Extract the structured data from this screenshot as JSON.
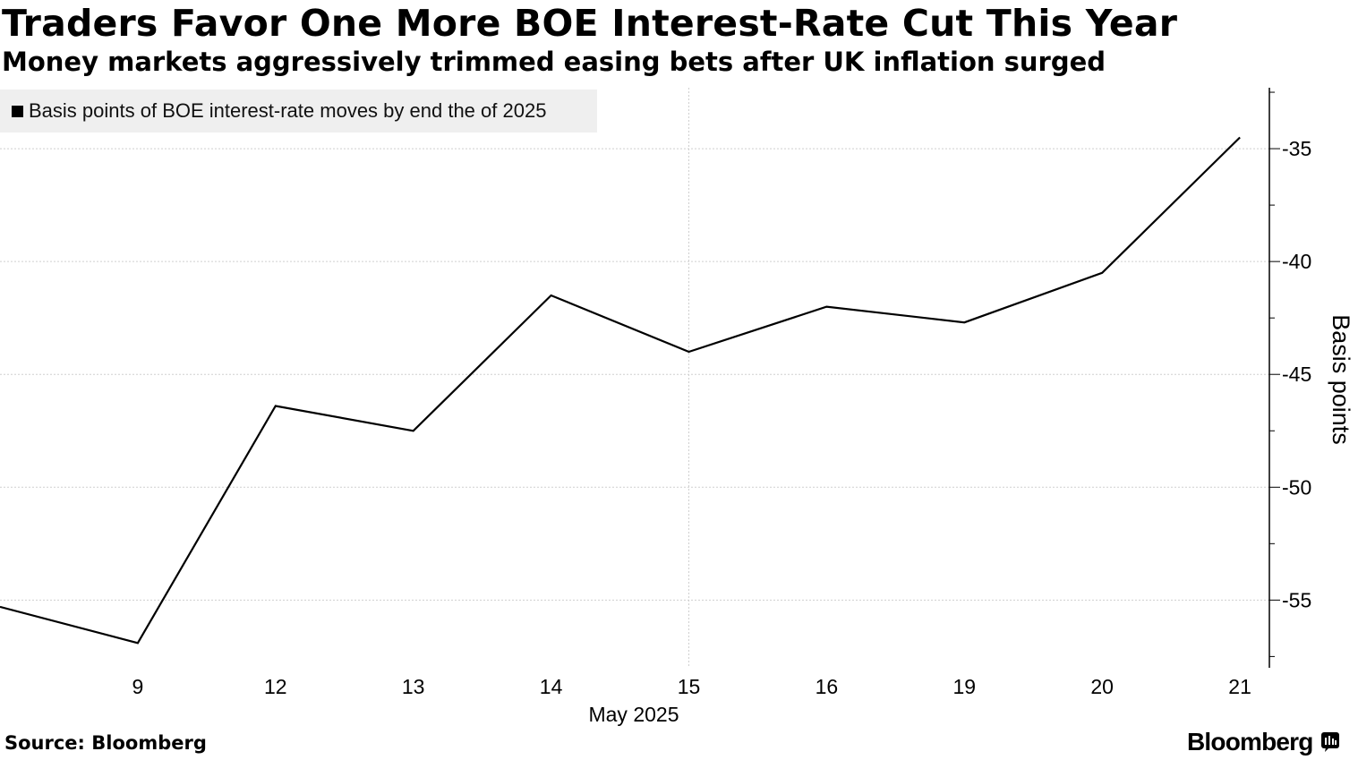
{
  "header": {
    "title": "Traders Favor One More BOE Interest-Rate Cut This Year",
    "subtitle": "Money markets aggressively trimmed easing bets after UK inflation surged"
  },
  "footer": {
    "source": "Source: Bloomberg",
    "brand": "Bloomberg"
  },
  "chart_data": {
    "type": "line",
    "x": [
      "May 8, 2025",
      "May 9, 2025",
      "May 12, 2025",
      "May 13, 2025",
      "May 14, 2025",
      "May 15, 2025",
      "May 16, 2025",
      "May 19, 2025",
      "May 20, 2025",
      "May 21, 2025"
    ],
    "series": [
      {
        "name": "Basis points of BOE interest-rate moves by end the of 2025",
        "values": [
          -55.3,
          -56.9,
          -46.4,
          -47.5,
          -41.5,
          -44.0,
          -42.0,
          -42.7,
          -40.5,
          -34.5
        ],
        "color": "#000000"
      }
    ],
    "xticks": [
      "9",
      "12",
      "13",
      "14",
      "15",
      "16",
      "19",
      "20",
      "21"
    ],
    "xlabel": "May 2025",
    "ylabel": "Basis points",
    "yticks": [
      "-35",
      "-40",
      "-45",
      "-50",
      "-55"
    ],
    "ylim": [
      -58,
      -32.3
    ],
    "axis_side": "right",
    "grid": true,
    "legend_position": "top-left"
  }
}
